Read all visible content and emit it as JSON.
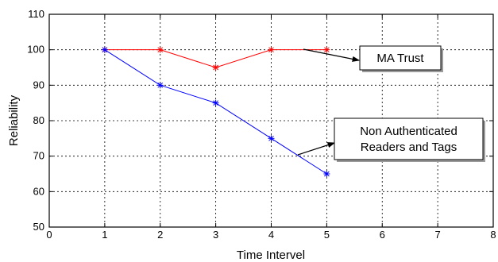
{
  "chart_data": {
    "type": "line",
    "xlabel": "Time Intervel",
    "ylabel": "Reliability",
    "xlim": [
      0,
      8
    ],
    "ylim": [
      50,
      110
    ],
    "xticks": [
      0,
      1,
      2,
      3,
      4,
      5,
      6,
      7,
      8
    ],
    "yticks": [
      50,
      60,
      70,
      80,
      90,
      100,
      110
    ],
    "grid": true,
    "series": [
      {
        "name": "MA Trust",
        "color": "#ff0000",
        "marker": "star",
        "x": [
          1,
          2,
          3,
          4,
          5
        ],
        "y": [
          100,
          100,
          95,
          100,
          100
        ]
      },
      {
        "name": "Non Authenticated Readers and Tags",
        "color": "#0000ff",
        "marker": "star",
        "x": [
          1,
          2,
          3,
          4,
          5
        ],
        "y": [
          100,
          90,
          85,
          75,
          65
        ]
      }
    ],
    "annotations": [
      {
        "lines": [
          "MA Trust"
        ]
      },
      {
        "lines": [
          "Non Authenticated",
          "Readers and Tags"
        ]
      }
    ]
  }
}
